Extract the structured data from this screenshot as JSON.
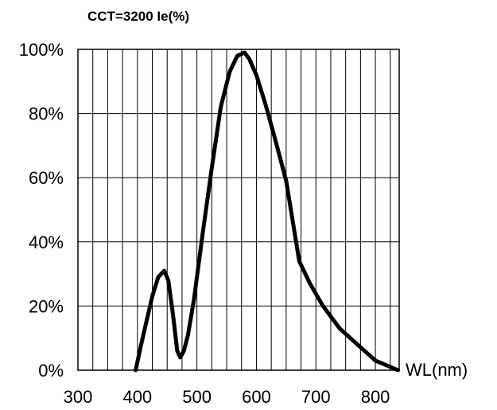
{
  "chart_data": {
    "type": "line",
    "title": "CCT=3200 Ie(%)",
    "xlabel": "WL(nm)",
    "ylabel": "",
    "xlim": [
      300,
      840
    ],
    "ylim": [
      0,
      100
    ],
    "x_ticks": [
      "300",
      "400",
      "500",
      "600",
      "700",
      "800"
    ],
    "y_ticks": [
      "0%",
      "20%",
      "40%",
      "60%",
      "80%",
      "100%"
    ],
    "grid": true,
    "series": [
      {
        "x": [
          397,
          405,
          415,
          425,
          435,
          445,
          452,
          460,
          467,
          472,
          478,
          485,
          495,
          510,
          525,
          540,
          555,
          568,
          580,
          588,
          600,
          615,
          630,
          650,
          672,
          690,
          712,
          740,
          770,
          800,
          838
        ],
        "y": [
          0,
          7,
          15,
          23,
          29,
          31,
          28,
          17,
          6,
          4,
          6,
          11,
          22,
          43,
          63,
          82,
          93,
          98,
          99,
          97,
          92,
          83,
          73,
          59,
          34,
          27,
          20,
          13,
          8,
          3,
          0
        ]
      }
    ]
  }
}
